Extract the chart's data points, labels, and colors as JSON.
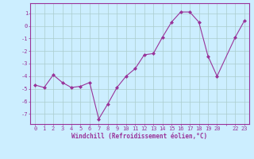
{
  "hours": [
    0,
    1,
    2,
    3,
    4,
    5,
    6,
    7,
    8,
    9,
    10,
    11,
    12,
    13,
    14,
    15,
    16,
    17,
    18,
    19,
    20,
    22,
    23
  ],
  "values": [
    -4.7,
    -4.9,
    -3.9,
    -4.5,
    -4.9,
    -4.8,
    -4.5,
    -7.4,
    -6.2,
    -4.9,
    -4.0,
    -3.4,
    -2.3,
    -2.2,
    -0.9,
    0.3,
    1.1,
    1.1,
    0.3,
    -2.4,
    -4.0,
    -0.9,
    0.4
  ],
  "line_color": "#993399",
  "marker": "D",
  "marker_size": 2,
  "bg_color": "#cceeff",
  "grid_color": "#aacccc",
  "xlabel": "Windchill (Refroidissement éolien,°C)",
  "xlim": [
    -0.5,
    23.5
  ],
  "ylim": [
    -7.8,
    1.8
  ],
  "yticks": [
    1,
    0,
    -1,
    -2,
    -3,
    -4,
    -5,
    -6,
    -7
  ],
  "tick_color": "#993399",
  "label_color": "#993399",
  "spine_color": "#993399",
  "tick_fontsize": 5,
  "xlabel_fontsize": 5.5
}
